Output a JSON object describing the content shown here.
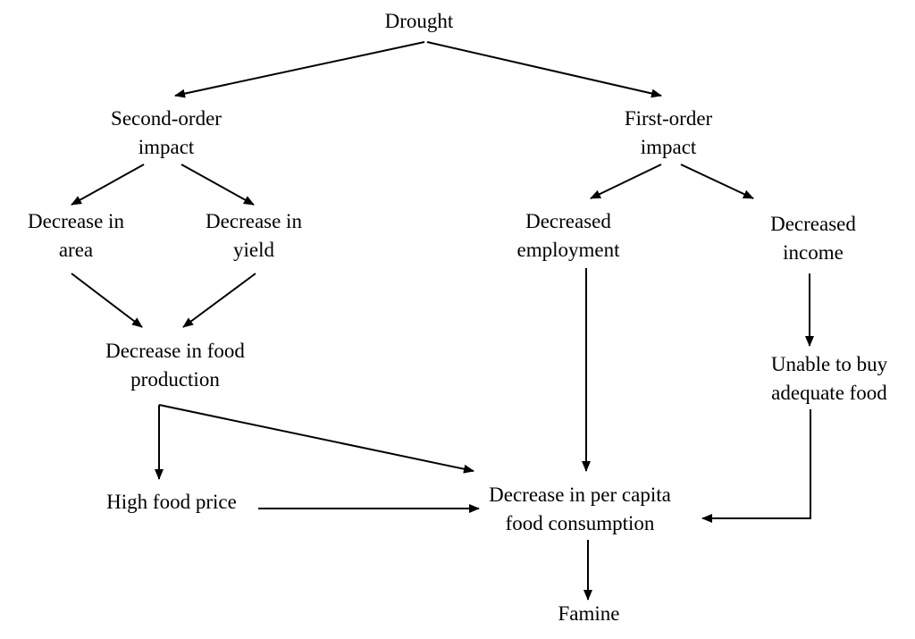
{
  "nodes": {
    "drought": {
      "lines": [
        "Drought"
      ]
    },
    "second_order": {
      "lines": [
        "Second-order",
        "impact"
      ]
    },
    "first_order": {
      "lines": [
        "First-order",
        "impact"
      ]
    },
    "decrease_area": {
      "lines": [
        "Decrease in",
        "area"
      ]
    },
    "decrease_yield": {
      "lines": [
        "Decrease in",
        "yield"
      ]
    },
    "decreased_employment": {
      "lines": [
        "Decreased",
        "employment"
      ]
    },
    "decreased_income": {
      "lines": [
        "Decreased",
        "income"
      ]
    },
    "decrease_food_production": {
      "lines": [
        "Decrease in food",
        "production"
      ]
    },
    "unable_to_buy": {
      "lines": [
        "Unable to buy",
        "adequate food"
      ]
    },
    "high_food_price": {
      "lines": [
        "High food price"
      ]
    },
    "decrease_consumption": {
      "lines": [
        "Decrease in per capita",
        "food consumption"
      ]
    },
    "famine": {
      "lines": [
        "Famine"
      ]
    }
  },
  "edges": [
    {
      "from": "drought",
      "to": "second_order"
    },
    {
      "from": "drought",
      "to": "first_order"
    },
    {
      "from": "second_order",
      "to": "decrease_area"
    },
    {
      "from": "second_order",
      "to": "decrease_yield"
    },
    {
      "from": "first_order",
      "to": "decreased_employment"
    },
    {
      "from": "first_order",
      "to": "decreased_income"
    },
    {
      "from": "decrease_area",
      "to": "decrease_food_production"
    },
    {
      "from": "decrease_yield",
      "to": "decrease_food_production"
    },
    {
      "from": "decrease_food_production",
      "to": "high_food_price"
    },
    {
      "from": "decrease_food_production",
      "to": "decrease_consumption"
    },
    {
      "from": "high_food_price",
      "to": "decrease_consumption"
    },
    {
      "from": "decreased_employment",
      "to": "decrease_consumption"
    },
    {
      "from": "decreased_income",
      "to": "unable_to_buy"
    },
    {
      "from": "unable_to_buy",
      "to": "decrease_consumption"
    },
    {
      "from": "decrease_consumption",
      "to": "famine"
    }
  ]
}
